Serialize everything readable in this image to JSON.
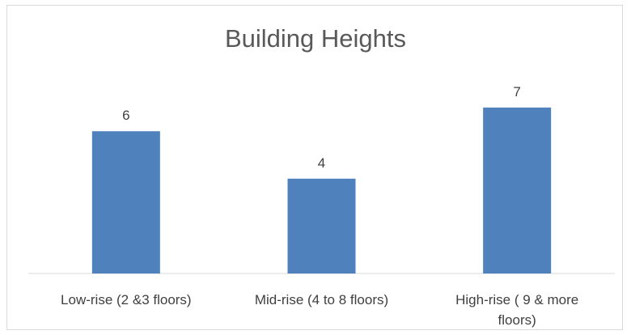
{
  "chart_data": {
    "type": "bar",
    "title": "Building Heights",
    "categories": [
      [
        "Low-rise (2 &3 floors)"
      ],
      [
        "Mid-rise (4 to 8 floors)"
      ],
      [
        "High-rise ( 9 & more",
        "floors)"
      ]
    ],
    "values": [
      6,
      4,
      7
    ],
    "ylim": [
      0,
      8
    ],
    "xlabel": "",
    "ylabel": "",
    "grid": false,
    "data_labels": true,
    "colors": {
      "bar": "#4f81bd",
      "axis": "#d9d9d9"
    }
  }
}
